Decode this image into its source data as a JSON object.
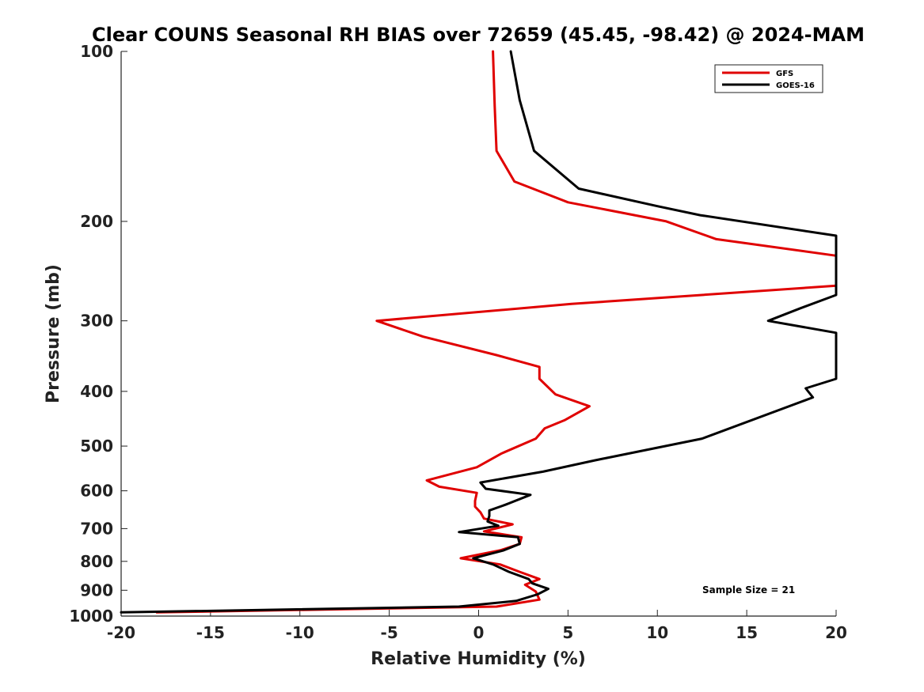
{
  "chart_data": {
    "type": "line",
    "title": "Clear COUNS Seasonal RH BIAS over 72659 (45.45, -98.42) @ 2024-MAM",
    "xlabel": "Relative Humidity (%)",
    "ylabel": "Pressure (mb)",
    "xlim": [
      -20,
      20
    ],
    "ylim": [
      100,
      1000
    ],
    "yscale": "log",
    "y_reversed": true,
    "xticks": [
      "-20",
      "-15",
      "-10",
      "-5",
      "0",
      "5",
      "10",
      "15",
      "20"
    ],
    "yticks": [
      "100",
      "200",
      "300",
      "400",
      "500",
      "600",
      "700",
      "800",
      "900",
      "1000"
    ],
    "grid": false,
    "legend_placement": "top-right",
    "annotation": "Sample Size = 21",
    "series": [
      {
        "name": "GFS",
        "color": "#e00000",
        "points": [
          [
            0.8,
            100
          ],
          [
            0.9,
            125
          ],
          [
            1.0,
            150
          ],
          [
            2.0,
            170
          ],
          [
            5.0,
            185
          ],
          [
            10.5,
            200
          ],
          [
            13.3,
            215
          ],
          [
            20,
            230
          ],
          [
            20,
            260
          ],
          [
            5.2,
            280
          ],
          [
            -5.7,
            300
          ],
          [
            -3.1,
            320
          ],
          [
            1.0,
            345
          ],
          [
            3.4,
            362
          ],
          [
            3.4,
            380
          ],
          [
            4.3,
            405
          ],
          [
            6.2,
            425
          ],
          [
            4.8,
            450
          ],
          [
            3.7,
            465
          ],
          [
            3.2,
            485
          ],
          [
            1.3,
            515
          ],
          [
            -0.1,
            545
          ],
          [
            -2.9,
            575
          ],
          [
            -2.2,
            590
          ],
          [
            -0.1,
            605
          ],
          [
            -0.2,
            625
          ],
          [
            -0.2,
            640
          ],
          [
            0.1,
            655
          ],
          [
            0.3,
            672
          ],
          [
            1.9,
            688
          ],
          [
            0.3,
            708
          ],
          [
            2.4,
            725
          ],
          [
            2.3,
            745
          ],
          [
            1.2,
            765
          ],
          [
            -1.0,
            790
          ],
          [
            1.2,
            810
          ],
          [
            2.3,
            835
          ],
          [
            3.4,
            860
          ],
          [
            2.6,
            880
          ],
          [
            3.2,
            905
          ],
          [
            3.4,
            935
          ],
          [
            1.0,
            962
          ],
          [
            -18.0,
            985
          ]
        ]
      },
      {
        "name": "GOES-16",
        "color": "#000000",
        "points": [
          [
            1.8,
            100
          ],
          [
            2.3,
            122
          ],
          [
            3.1,
            150
          ],
          [
            5.6,
            175
          ],
          [
            10.0,
            188
          ],
          [
            12.4,
            195
          ],
          [
            20,
            212
          ],
          [
            20,
            270
          ],
          [
            18.0,
            285
          ],
          [
            16.2,
            300
          ],
          [
            20,
            315
          ],
          [
            20,
            380
          ],
          [
            18.3,
            395
          ],
          [
            18.7,
            410
          ],
          [
            12.5,
            485
          ],
          [
            6.5,
            530
          ],
          [
            3.6,
            555
          ],
          [
            0.1,
            580
          ],
          [
            0.4,
            595
          ],
          [
            2.9,
            610
          ],
          [
            1.5,
            635
          ],
          [
            0.6,
            650
          ],
          [
            0.6,
            665
          ],
          [
            0.5,
            680
          ],
          [
            1.1,
            692
          ],
          [
            -1.1,
            710
          ],
          [
            2.2,
            725
          ],
          [
            2.3,
            745
          ],
          [
            1.4,
            765
          ],
          [
            -0.3,
            790
          ],
          [
            0.8,
            810
          ],
          [
            1.7,
            835
          ],
          [
            2.8,
            860
          ],
          [
            3.0,
            875
          ],
          [
            3.9,
            895
          ],
          [
            3.3,
            915
          ],
          [
            2.1,
            940
          ],
          [
            -1.1,
            962
          ],
          [
            -20,
            985
          ]
        ]
      }
    ]
  }
}
